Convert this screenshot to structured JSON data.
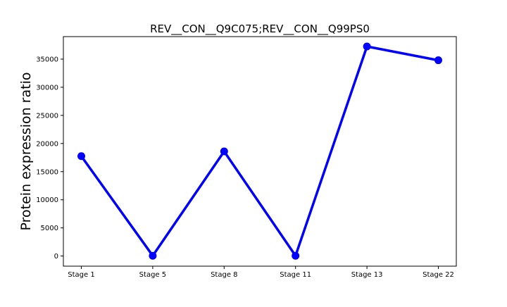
{
  "chart_data": {
    "type": "line",
    "title": "REV__CON__Q9C075;REV__CON__Q99PS0",
    "xlabel": "",
    "ylabel": "Protein expression ratio",
    "categories": [
      "Stage 1",
      "Stage 5",
      "Stage 8",
      "Stage 11",
      "Stage 13",
      "Stage 22"
    ],
    "series": [
      {
        "values": [
          17750,
          50,
          18600,
          50,
          37250,
          34800
        ],
        "color": "#0000ff",
        "marker": "circle"
      }
    ],
    "ylim": [
      -1800,
      39000
    ],
    "yticks": [
      0,
      5000,
      10000,
      15000,
      20000,
      25000,
      30000,
      35000
    ],
    "grid": false,
    "legend": "none"
  }
}
